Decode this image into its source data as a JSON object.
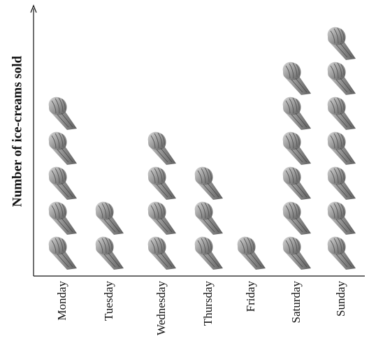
{
  "chart_data": {
    "type": "pictograph",
    "y_label": "Number of ice-creams sold",
    "categories": [
      "Monday",
      "Tuesday",
      "Wednesday",
      "Thursday",
      "Friday",
      "Saturday",
      "Sunday"
    ],
    "values": [
      5,
      2,
      4,
      3,
      1,
      6,
      7
    ],
    "color": "#8a8a8a"
  }
}
